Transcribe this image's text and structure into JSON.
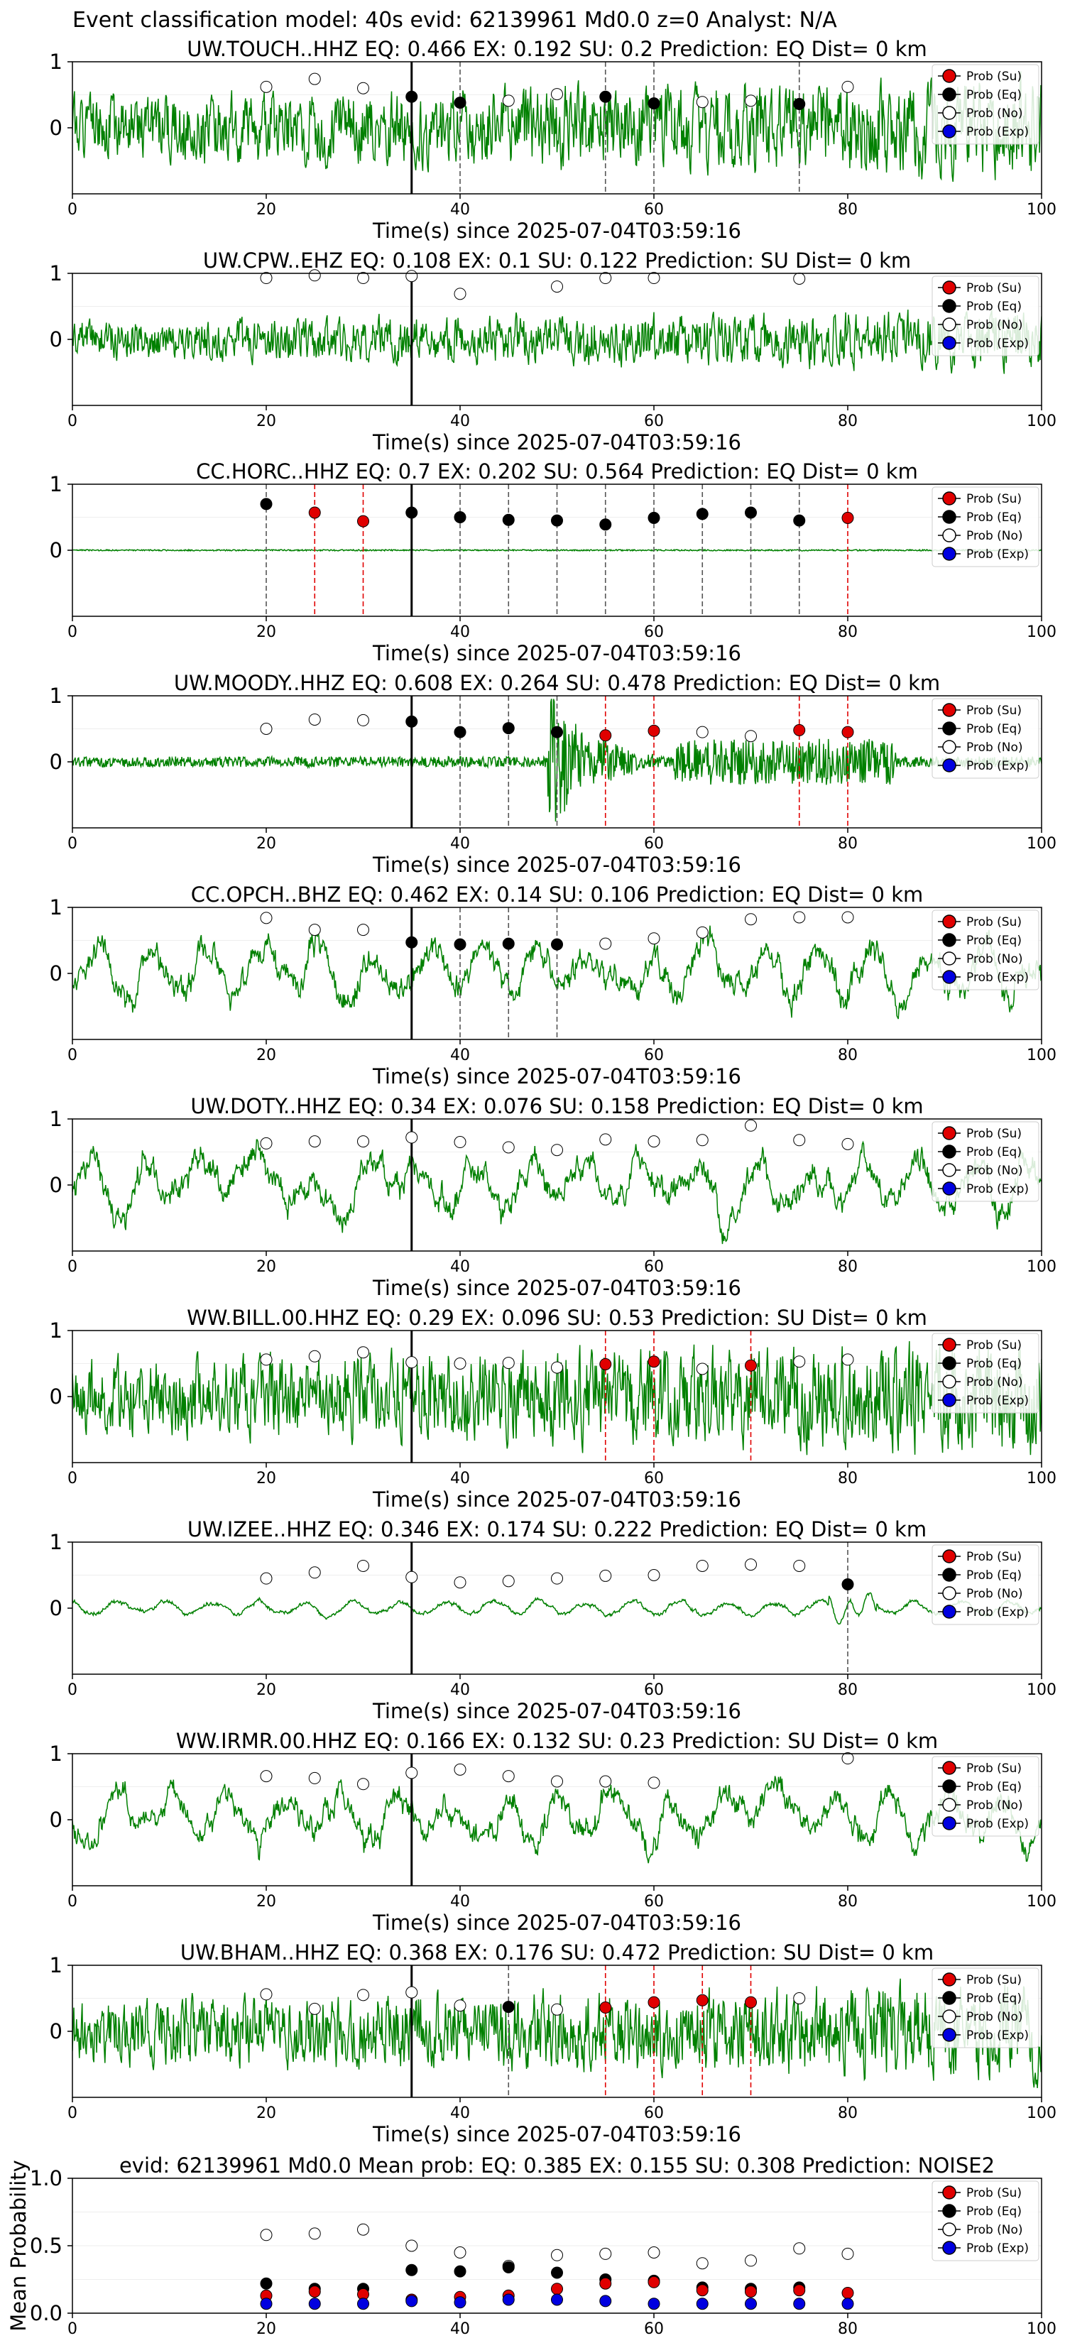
{
  "figure": {
    "suptitle": "Event classification model: 40s evid: 62139961 Md0.0 z=0 Analyst: N/A"
  },
  "legend": [
    {
      "label": "Prob (Su)",
      "color": "#e00000"
    },
    {
      "label": "Prob (Eq)",
      "color": "#000000"
    },
    {
      "label": "Prob (No)",
      "color": "#ffffff"
    },
    {
      "label": "Prob (Exp)",
      "color": "#0000e0"
    }
  ],
  "colors": {
    "waveform": "#008000",
    "su_line": "#e00000",
    "eq_line": "#000000",
    "pick": "#000000"
  },
  "chart_data": [
    {
      "type": "line",
      "title": "UW.TOUCH..HHZ   EQ: 0.466   EX: 0.192   SU: 0.2   Prediction: EQ    Dist= 0 km",
      "xlabel": "Time(s) since 2025-07-04T03:59:16",
      "xlim": [
        0,
        100
      ],
      "xticks": [
        0,
        20,
        40,
        60,
        80,
        100
      ],
      "ylim": [
        -1,
        1
      ],
      "yticks": [
        0,
        1
      ],
      "pick_time": 35,
      "waveform": {
        "amplitude": 0.35,
        "growth": 1.6,
        "roughness": "high",
        "seed": 1
      },
      "window_x": [
        20,
        25,
        30,
        35,
        40,
        45,
        50,
        55,
        60,
        65,
        70,
        75,
        80
      ],
      "window_class": [
        "No",
        "No",
        "No",
        "Eq",
        "Eq",
        "No",
        "No",
        "Eq",
        "Eq",
        "No",
        "No",
        "Eq",
        "No"
      ],
      "window_prob": [
        0.62,
        0.74,
        0.6,
        0.47,
        0.38,
        0.41,
        0.51,
        0.47,
        0.37,
        0.39,
        0.41,
        0.36,
        0.62
      ]
    },
    {
      "type": "line",
      "title": "UW.CPW..EHZ   EQ: 0.108   EX: 0.1   SU: 0.122   Prediction: SU    Dist= 0 km",
      "xlabel": "Time(s) since 2025-07-04T03:59:16",
      "xlim": [
        0,
        100
      ],
      "xticks": [
        0,
        20,
        40,
        60,
        80,
        100
      ],
      "ylim": [
        -1,
        1
      ],
      "yticks": [
        0,
        1
      ],
      "pick_time": 35,
      "waveform": {
        "amplitude": 0.22,
        "growth": 1.5,
        "roughness": "high",
        "seed": 2
      },
      "window_x": [
        20,
        25,
        30,
        35,
        40,
        45,
        50,
        55,
        60,
        65,
        70,
        75,
        80
      ],
      "window_class": [
        "No",
        "No",
        "No",
        "No",
        "No",
        "No",
        "No",
        "No",
        "No",
        "No",
        "No",
        "No",
        "No"
      ],
      "window_prob": [
        0.93,
        0.97,
        0.93,
        0.96,
        0.69,
        null,
        0.8,
        0.93,
        0.93,
        null,
        null,
        0.92,
        null
      ]
    },
    {
      "type": "line",
      "title": "CC.HORC..HHZ   EQ: 0.7   EX: 0.202   SU: 0.564    Prediction: EQ    Dist= 0 km",
      "xlabel": "Time(s) since 2025-07-04T03:59:16",
      "xlim": [
        0,
        100
      ],
      "xticks": [
        0,
        20,
        40,
        60,
        80,
        100
      ],
      "ylim": [
        -1,
        1
      ],
      "yticks": [
        0,
        1
      ],
      "pick_time": 35,
      "waveform": {
        "amplitude": 0.01,
        "growth": 1.0,
        "roughness": "flat",
        "seed": 3
      },
      "window_x": [
        20,
        25,
        30,
        35,
        40,
        45,
        50,
        55,
        60,
        65,
        70,
        75,
        80
      ],
      "window_class": [
        "Eq",
        "Su",
        "Su",
        "Eq",
        "Eq",
        "Eq",
        "Eq",
        "Eq",
        "Eq",
        "Eq",
        "Eq",
        "Eq",
        "Su"
      ],
      "window_prob": [
        0.7,
        0.57,
        0.44,
        0.57,
        0.5,
        0.46,
        0.45,
        0.39,
        0.49,
        0.55,
        0.57,
        0.45,
        0.49
      ]
    },
    {
      "type": "line",
      "title": "UW.MOODY..HHZ   EQ: 0.608   EX: 0.264   SU: 0.478    Prediction: EQ    Dist= 0 km",
      "xlabel": "Time(s) since 2025-07-04T03:59:16",
      "xlim": [
        0,
        100
      ],
      "xticks": [
        0,
        20,
        40,
        60,
        80,
        100
      ],
      "ylim": [
        -1,
        1
      ],
      "yticks": [
        0,
        1
      ],
      "pick_time": 35,
      "waveform": {
        "amplitude": 0.08,
        "growth": 1.0,
        "roughness": "event",
        "seed": 4
      },
      "window_x": [
        20,
        25,
        30,
        35,
        40,
        45,
        50,
        55,
        60,
        65,
        70,
        75,
        80
      ],
      "window_class": [
        "No",
        "No",
        "No",
        "Eq",
        "Eq",
        "Eq",
        "Eq",
        "Su",
        "Su",
        "No",
        "No",
        "Su",
        "Su"
      ],
      "window_prob": [
        0.5,
        0.64,
        0.63,
        0.61,
        0.45,
        0.51,
        0.45,
        0.4,
        0.47,
        0.45,
        0.39,
        0.48,
        0.45
      ]
    },
    {
      "type": "line",
      "title": "CC.OPCH..BHZ   EQ: 0.462   EX: 0.14   SU: 0.106   Prediction: EQ    Dist= 0 km",
      "xlabel": "Time(s) since 2025-07-04T03:59:16",
      "xlim": [
        0,
        100
      ],
      "xticks": [
        0,
        20,
        40,
        60,
        80,
        100
      ],
      "ylim": [
        -1,
        1
      ],
      "yticks": [
        0,
        1
      ],
      "pick_time": 35,
      "waveform": {
        "amplitude": 0.45,
        "growth": 1.1,
        "roughness": "low",
        "seed": 5
      },
      "window_x": [
        20,
        25,
        30,
        35,
        40,
        45,
        50,
        55,
        60,
        65,
        70,
        75,
        80
      ],
      "window_class": [
        "No",
        "No",
        "No",
        "Eq",
        "Eq",
        "Eq",
        "Eq",
        "No",
        "No",
        "No",
        "No",
        "No",
        "No"
      ],
      "window_prob": [
        0.84,
        0.66,
        0.66,
        0.47,
        0.44,
        0.45,
        0.44,
        0.45,
        0.53,
        0.62,
        0.82,
        0.85,
        0.85
      ]
    },
    {
      "type": "line",
      "title": "UW.DOTY..HHZ   EQ: 0.34   EX: 0.076   SU: 0.158   Prediction: EQ    Dist= 0 km",
      "xlabel": "Time(s) since 2025-07-04T03:59:16",
      "xlim": [
        0,
        100
      ],
      "xticks": [
        0,
        20,
        40,
        60,
        80,
        100
      ],
      "ylim": [
        -1,
        1
      ],
      "yticks": [
        0,
        1
      ],
      "pick_time": 35,
      "waveform": {
        "amplitude": 0.5,
        "growth": 1.0,
        "roughness": "low",
        "seed": 6
      },
      "window_x": [
        20,
        25,
        30,
        35,
        40,
        45,
        50,
        55,
        60,
        65,
        70,
        75,
        80
      ],
      "window_class": [
        "No",
        "No",
        "No",
        "No",
        "No",
        "No",
        "No",
        "No",
        "No",
        "No",
        "No",
        "No",
        "No"
      ],
      "window_prob": [
        0.63,
        0.66,
        0.66,
        0.72,
        0.65,
        0.57,
        0.53,
        0.69,
        0.66,
        0.68,
        0.9,
        0.68,
        0.62
      ]
    },
    {
      "type": "line",
      "title": "WW.BILL.00.HHZ   EQ: 0.29   EX: 0.096   SU: 0.53    Prediction: SU    Dist= 0 km",
      "xlabel": "Time(s) since 2025-07-04T03:59:16",
      "xlim": [
        0,
        100
      ],
      "xticks": [
        0,
        20,
        40,
        60,
        80,
        100
      ],
      "ylim": [
        -1,
        1
      ],
      "yticks": [
        0,
        1
      ],
      "pick_time": 35,
      "waveform": {
        "amplitude": 0.4,
        "growth": 1.6,
        "roughness": "high",
        "seed": 7
      },
      "window_x": [
        20,
        25,
        30,
        35,
        40,
        45,
        50,
        55,
        60,
        65,
        70,
        75,
        80
      ],
      "window_class": [
        "No",
        "No",
        "No",
        "No",
        "No",
        "No",
        "No",
        "Su",
        "Su",
        "No",
        "Su",
        "No",
        "No"
      ],
      "window_prob": [
        0.56,
        0.61,
        0.67,
        0.52,
        0.5,
        0.51,
        0.44,
        0.49,
        0.53,
        0.42,
        0.47,
        0.53,
        0.56
      ]
    },
    {
      "type": "line",
      "title": "UW.IZEE..HHZ   EQ: 0.346   EX: 0.174   SU: 0.222   Prediction: EQ    Dist= 0 km",
      "xlabel": "Time(s) since 2025-07-04T03:59:16",
      "xlim": [
        0,
        100
      ],
      "xticks": [
        0,
        20,
        40,
        60,
        80,
        100
      ],
      "ylim": [
        -1,
        1
      ],
      "yticks": [
        0,
        1
      ],
      "pick_time": 35,
      "waveform": {
        "amplitude": 0.09,
        "growth": 1.1,
        "roughness": "smooth",
        "seed": 8
      },
      "window_x": [
        20,
        25,
        30,
        35,
        40,
        45,
        50,
        55,
        60,
        65,
        70,
        75,
        80
      ],
      "window_class": [
        "No",
        "No",
        "No",
        "No",
        "No",
        "No",
        "No",
        "No",
        "No",
        "No",
        "No",
        "No",
        "Eq"
      ],
      "window_prob": [
        0.45,
        0.54,
        0.64,
        0.47,
        0.39,
        0.41,
        0.45,
        0.49,
        0.5,
        0.64,
        0.66,
        0.64,
        0.36
      ]
    },
    {
      "type": "line",
      "title": "WW.IRMR.00.HHZ   EQ: 0.166   EX: 0.132   SU: 0.23    Prediction: SU    Dist= 0 km",
      "xlabel": "Time(s) since 2025-07-04T03:59:16",
      "xlim": [
        0,
        100
      ],
      "xticks": [
        0,
        20,
        40,
        60,
        80,
        100
      ],
      "ylim": [
        -1,
        1
      ],
      "yticks": [
        0,
        1
      ],
      "pick_time": 35,
      "waveform": {
        "amplitude": 0.45,
        "growth": 1.0,
        "roughness": "low",
        "seed": 9
      },
      "window_x": [
        20,
        25,
        30,
        35,
        40,
        45,
        50,
        55,
        60,
        65,
        70,
        75,
        80
      ],
      "window_class": [
        "No",
        "No",
        "No",
        "No",
        "No",
        "No",
        "No",
        "No",
        "No",
        "No",
        "No",
        "No",
        "No"
      ],
      "window_prob": [
        0.66,
        0.63,
        0.54,
        0.71,
        0.76,
        0.66,
        0.58,
        0.58,
        0.56,
        null,
        null,
        null,
        0.93
      ]
    },
    {
      "type": "line",
      "title": "UW.BHAM..HHZ   EQ: 0.368   EX: 0.176   SU: 0.472   Prediction: SU    Dist= 0 km",
      "xlabel": "Time(s) since 2025-07-04T03:59:16",
      "xlim": [
        0,
        100
      ],
      "xticks": [
        0,
        20,
        40,
        60,
        80,
        100
      ],
      "ylim": [
        -1,
        1
      ],
      "yticks": [
        0,
        1
      ],
      "pick_time": 35,
      "waveform": {
        "amplitude": 0.35,
        "growth": 1.5,
        "roughness": "high",
        "seed": 10
      },
      "window_x": [
        20,
        25,
        30,
        35,
        40,
        45,
        50,
        55,
        60,
        65,
        70,
        75,
        80
      ],
      "window_class": [
        "No",
        "No",
        "No",
        "No",
        "No",
        "Eq",
        "No",
        "Su",
        "Su",
        "Su",
        "Su",
        "No",
        null
      ],
      "window_prob": [
        0.56,
        0.34,
        0.55,
        0.59,
        0.39,
        0.37,
        0.33,
        0.36,
        0.44,
        0.47,
        0.44,
        0.5,
        null
      ]
    },
    {
      "type": "scatter",
      "title": "evid: 62139961  Md0.0   Mean prob:   EQ: 0.385   EX: 0.155   SU: 0.308    Prediction: NOISE2",
      "ylabel": "Mean Probability",
      "xlim": [
        0,
        100
      ],
      "xticks": [
        0,
        20,
        40,
        60,
        80,
        100
      ],
      "ylim": [
        0,
        1
      ],
      "yticks": [
        "0.0",
        "0.5",
        "1.0"
      ],
      "x": [
        20,
        25,
        30,
        35,
        40,
        45,
        50,
        55,
        60,
        65,
        70,
        75,
        80
      ],
      "series": [
        {
          "name": "Prob (No)",
          "values": [
            0.58,
            0.59,
            0.62,
            0.5,
            0.45,
            0.35,
            0.43,
            0.44,
            0.45,
            0.37,
            0.39,
            0.48,
            0.44
          ]
        },
        {
          "name": "Prob (Eq)",
          "values": [
            0.22,
            0.18,
            0.18,
            0.32,
            0.31,
            0.34,
            0.3,
            0.25,
            0.24,
            0.19,
            0.18,
            0.19,
            null
          ]
        },
        {
          "name": "Prob (Su)",
          "values": [
            0.13,
            0.16,
            0.14,
            0.1,
            0.12,
            0.13,
            0.18,
            0.22,
            0.23,
            0.17,
            0.16,
            0.17,
            0.15
          ]
        },
        {
          "name": "Prob (Exp)",
          "values": [
            0.07,
            0.07,
            0.07,
            0.09,
            0.08,
            0.1,
            0.1,
            0.09,
            0.07,
            0.07,
            0.07,
            0.07,
            0.07
          ]
        }
      ]
    }
  ]
}
